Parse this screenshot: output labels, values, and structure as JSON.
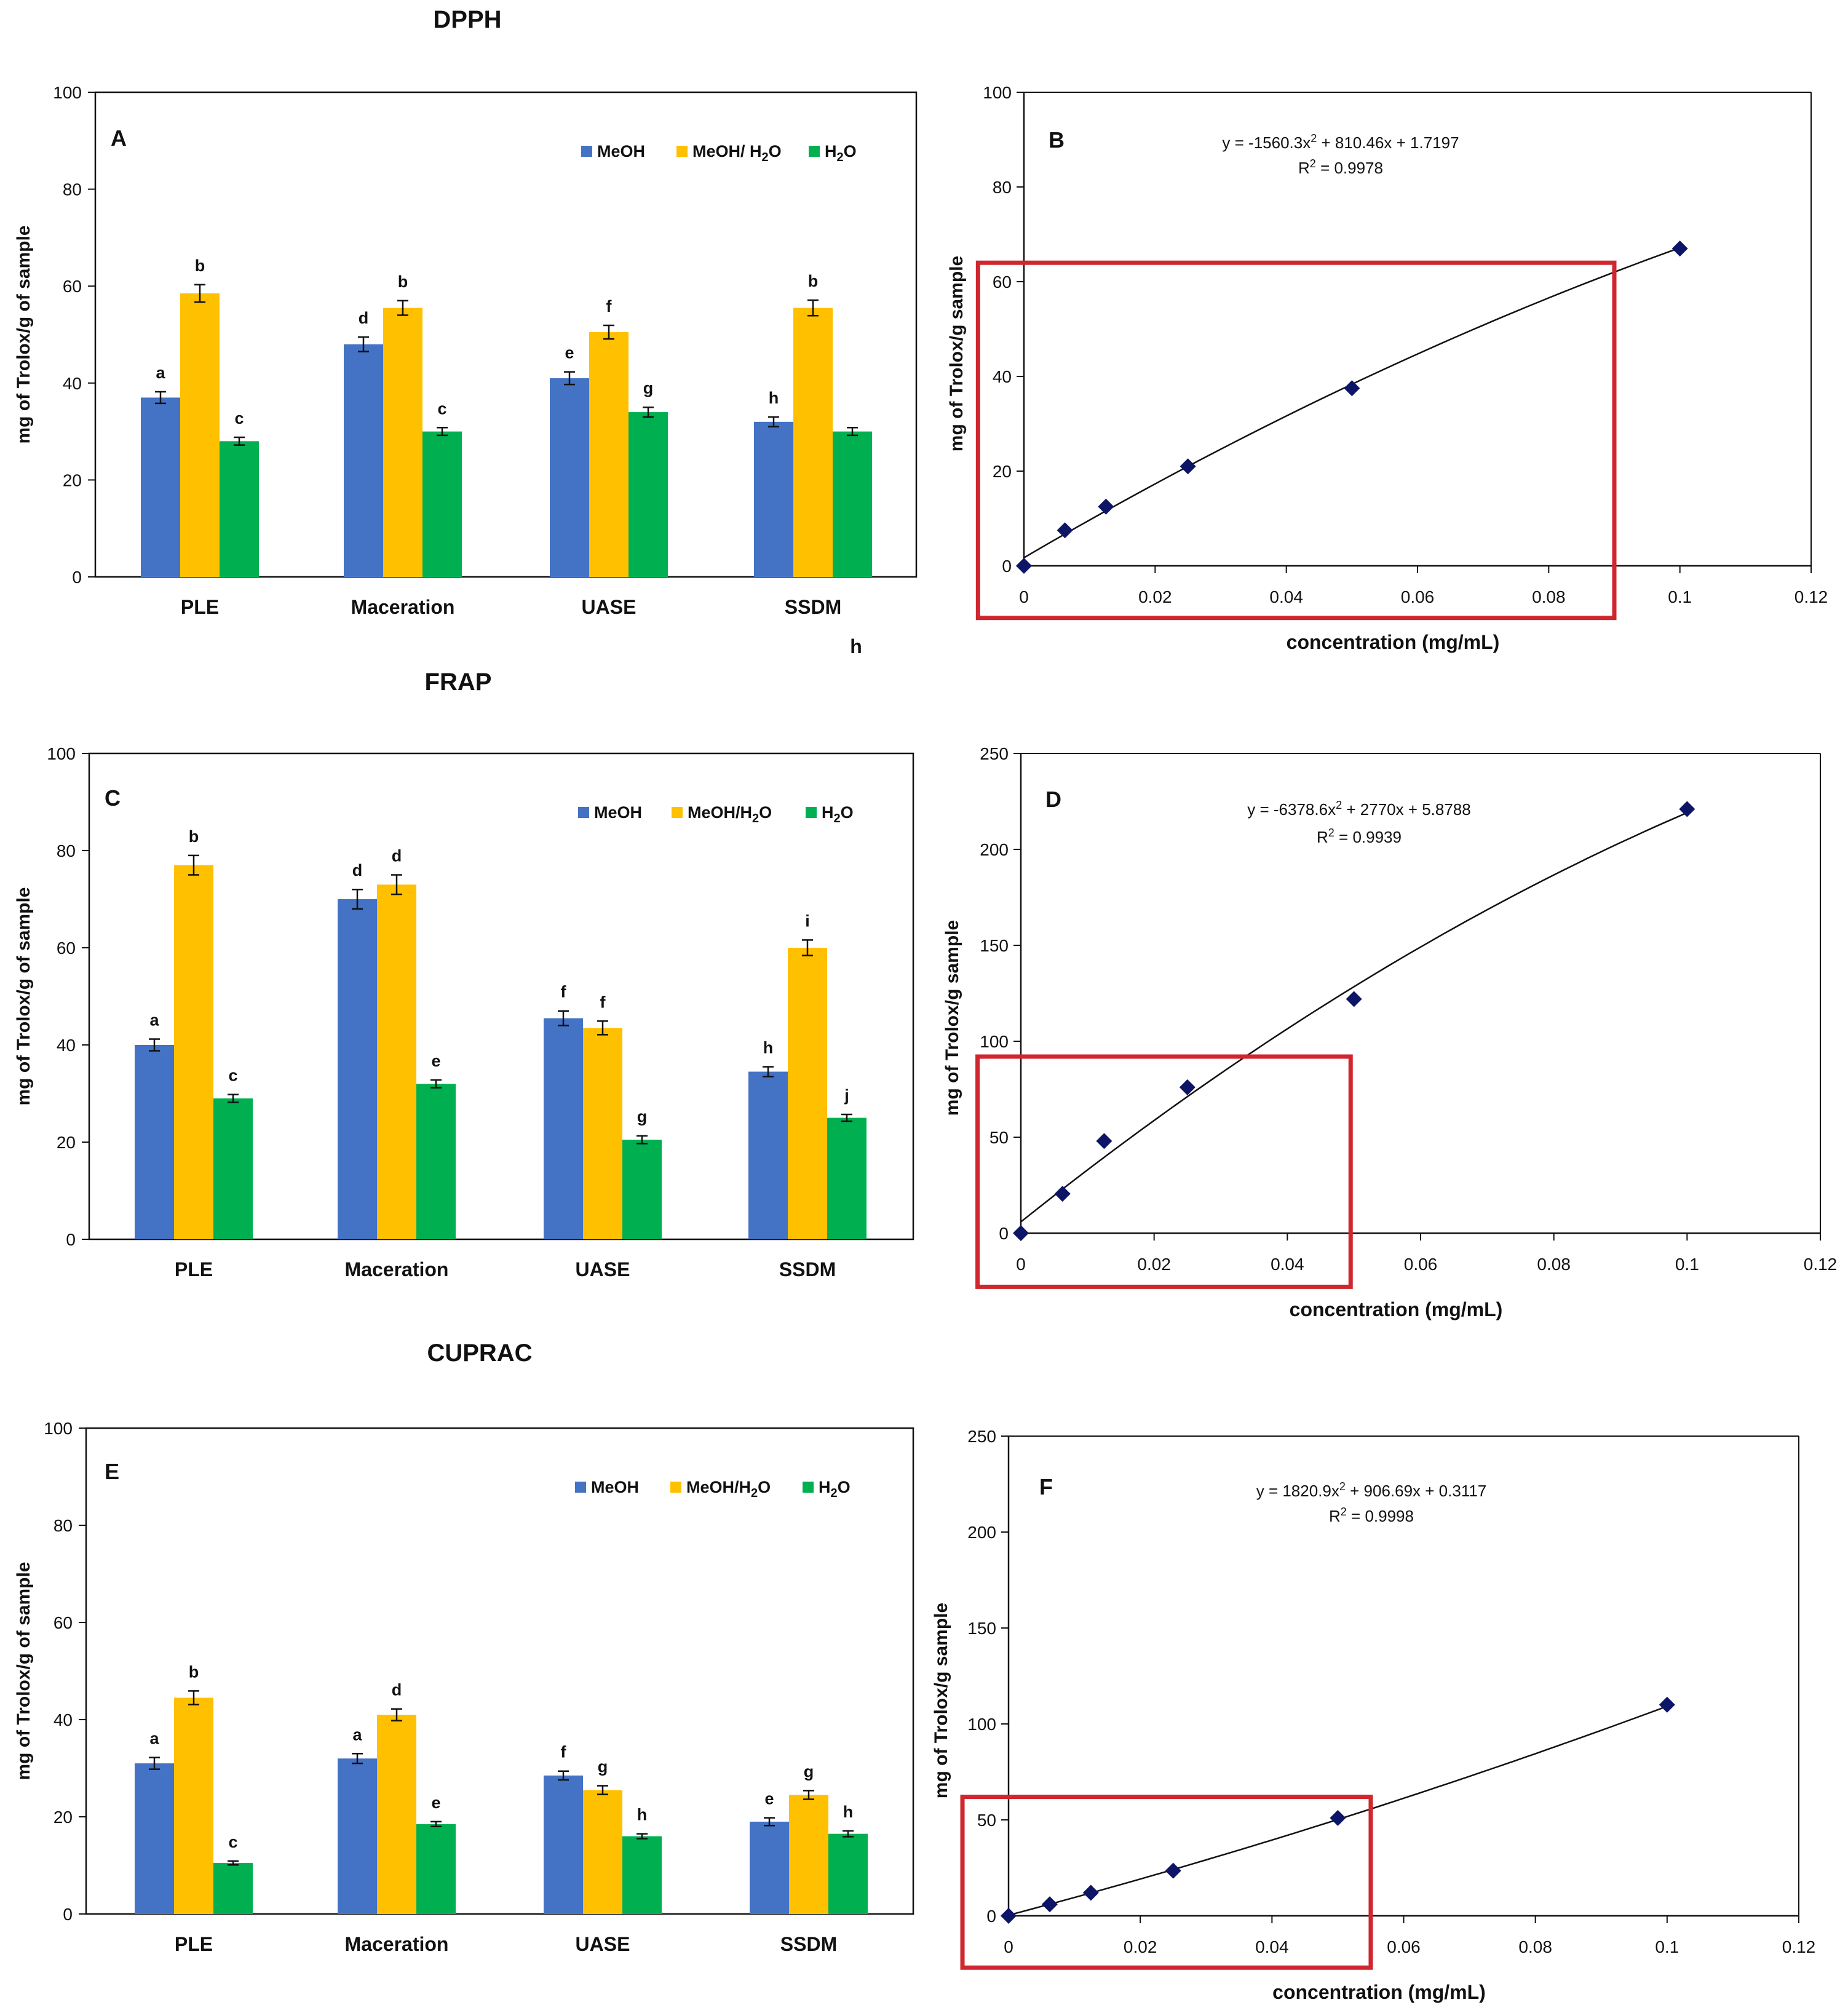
{
  "colors": {
    "meoh": "#4472c4",
    "meoh_h2o": "#ffc000",
    "h2o": "#00b050",
    "marker": "#0d1566",
    "highlight": "#d0262e"
  },
  "sections": {
    "dpph": "DPPH",
    "frap": "FRAP",
    "cuprac": "CUPRAC"
  },
  "stray_label": "h",
  "chart_data": [
    {
      "id": "A",
      "type": "bar",
      "panel": "A",
      "section": "DPPH",
      "categories": [
        "PLE",
        "Maceration",
        "UASE",
        "SSDM"
      ],
      "series": [
        {
          "name": "MeOH",
          "values": [
            37,
            48,
            41,
            32
          ],
          "errors": [
            1.2,
            1.5,
            1.3,
            1.0
          ],
          "letters": [
            "a",
            "d",
            "e",
            "h"
          ]
        },
        {
          "name": "MeOH/ H2O",
          "values": [
            58.5,
            55.5,
            50.5,
            55.5
          ],
          "errors": [
            1.8,
            1.5,
            1.4,
            1.6
          ],
          "letters": [
            "b",
            "b",
            "f",
            "b"
          ]
        },
        {
          "name": "H2O",
          "values": [
            28,
            30,
            34,
            30
          ],
          "errors": [
            0.8,
            0.8,
            1.0,
            0.8
          ],
          "letters": [
            "c",
            "c",
            "g",
            ""
          ]
        }
      ],
      "ylabel": "mg of Trolox/g of sample",
      "xlabel": "",
      "ylim": [
        0,
        100
      ],
      "yticks": [
        0,
        20,
        40,
        60,
        80,
        100
      ],
      "legend": "top-right"
    },
    {
      "id": "B",
      "type": "scatter",
      "panel": "B",
      "x": [
        0,
        0.00625,
        0.0125,
        0.025,
        0.05,
        0.1
      ],
      "y": [
        0,
        7.5,
        12.5,
        21,
        37.5,
        67
      ],
      "fit": {
        "a": -1560.3,
        "b": 810.46,
        "c": 1.7197
      },
      "equation": "y = -1560.3x² + 810.46x + 1.7197",
      "r2": "R² = 0.9978",
      "xlabel": "concentration (mg/mL)",
      "ylabel": "mg of Trolox/g sample",
      "xlim": [
        0,
        0.12
      ],
      "ylim": [
        0,
        100
      ],
      "xticks": [
        0,
        0.02,
        0.04,
        0.06,
        0.08,
        0.1,
        0.12
      ],
      "xtick_labels": [
        "0",
        "0.02",
        "0.04",
        "0.06",
        "0.08",
        "0.1",
        "0.12"
      ],
      "yticks": [
        0,
        20,
        40,
        60,
        80,
        100
      ],
      "highlight": {
        "x0": -0.007,
        "x1": 0.09,
        "y0": -11,
        "y1": 64
      }
    },
    {
      "id": "C",
      "type": "bar",
      "panel": "C",
      "section": "FRAP",
      "categories": [
        "PLE",
        "Maceration",
        "UASE",
        "SSDM"
      ],
      "series": [
        {
          "name": "MeOH",
          "values": [
            40,
            70,
            45.5,
            34.5
          ],
          "errors": [
            1.2,
            2.0,
            1.5,
            1.0
          ],
          "letters": [
            "a",
            "d",
            "f",
            "h"
          ]
        },
        {
          "name": "MeOH/H2O",
          "values": [
            77,
            73,
            43.5,
            60
          ],
          "errors": [
            2.0,
            2.0,
            1.4,
            1.6
          ],
          "letters": [
            "b",
            "d",
            "f",
            "i"
          ]
        },
        {
          "name": "H2O",
          "values": [
            29,
            32,
            20.5,
            25
          ],
          "errors": [
            0.8,
            0.8,
            0.8,
            0.7
          ],
          "letters": [
            "c",
            "e",
            "g",
            "j"
          ]
        }
      ],
      "ylabel": "mg of Trolox/g of sample",
      "xlabel": "",
      "ylim": [
        0,
        100
      ],
      "yticks": [
        0,
        20,
        40,
        60,
        80,
        100
      ],
      "legend": "top-right"
    },
    {
      "id": "D",
      "type": "scatter",
      "panel": "D",
      "x": [
        0,
        0.00625,
        0.0125,
        0.025,
        0.05,
        0.1
      ],
      "y": [
        0,
        20.5,
        48,
        76,
        122,
        221
      ],
      "fit": {
        "a": -6378.6,
        "b": 2770,
        "c": 5.8788
      },
      "equation": "y = -6378.6x² + 2770x + 5.8788",
      "r2": "R² = 0.9939",
      "xlabel": "concentration (mg/mL)",
      "ylabel": "mg of Trolox/g sample",
      "xlim": [
        0,
        0.12
      ],
      "ylim": [
        0,
        250
      ],
      "xticks": [
        0,
        0.02,
        0.04,
        0.06,
        0.08,
        0.1,
        0.12
      ],
      "xtick_labels": [
        "0",
        "0.02",
        "0.04",
        "0.06",
        "0.08",
        "0.1",
        "0.12"
      ],
      "yticks": [
        0,
        50,
        100,
        150,
        200,
        250
      ],
      "highlight": {
        "x0": -0.0065,
        "x1": 0.0495,
        "y0": -28,
        "y1": 92
      }
    },
    {
      "id": "E",
      "type": "bar",
      "panel": "E",
      "section": "CUPRAC",
      "categories": [
        "PLE",
        "Maceration",
        "UASE",
        "SSDM"
      ],
      "series": [
        {
          "name": "MeOH",
          "values": [
            31,
            32,
            28.5,
            19
          ],
          "errors": [
            1.2,
            1.0,
            0.9,
            0.8
          ],
          "letters": [
            "a",
            "a",
            "f",
            "e"
          ]
        },
        {
          "name": "MeOH/H2O",
          "values": [
            44.5,
            41,
            25.5,
            24.5
          ],
          "errors": [
            1.4,
            1.2,
            0.9,
            0.9
          ],
          "letters": [
            "b",
            "d",
            "g",
            "g"
          ]
        },
        {
          "name": "H2O",
          "values": [
            10.5,
            18.5,
            16,
            16.5
          ],
          "errors": [
            0.4,
            0.5,
            0.5,
            0.6
          ],
          "letters": [
            "c",
            "e",
            "h",
            "h"
          ]
        }
      ],
      "ylabel": "mg of Trolox/g of sample",
      "xlabel": "",
      "ylim": [
        0,
        100
      ],
      "yticks": [
        0,
        20,
        40,
        60,
        80,
        100
      ],
      "legend": "top-right"
    },
    {
      "id": "F",
      "type": "scatter",
      "panel": "F",
      "x": [
        0,
        0.00625,
        0.0125,
        0.025,
        0.05,
        0.1
      ],
      "y": [
        0,
        6,
        12,
        23.5,
        51,
        110
      ],
      "fit": {
        "a": 1820.9,
        "b": 906.69,
        "c": 0.3117
      },
      "equation": "y = 1820.9x² + 906.69x + 0.3117",
      "r2": "R² = 0.9998",
      "xlabel": "concentration (mg/mL)",
      "ylabel": "mg of Trolox/g sample",
      "xlim": [
        0,
        0.12
      ],
      "ylim": [
        0,
        250
      ],
      "xticks": [
        0,
        0.02,
        0.04,
        0.06,
        0.08,
        0.1,
        0.12
      ],
      "xtick_labels": [
        "0",
        "0.02",
        "0.04",
        "0.06",
        "0.08",
        "0.1",
        "0.12"
      ],
      "yticks": [
        0,
        50,
        100,
        150,
        200,
        250
      ],
      "highlight": {
        "x0": -0.007,
        "x1": 0.055,
        "y0": -27,
        "y1": 62
      }
    }
  ]
}
